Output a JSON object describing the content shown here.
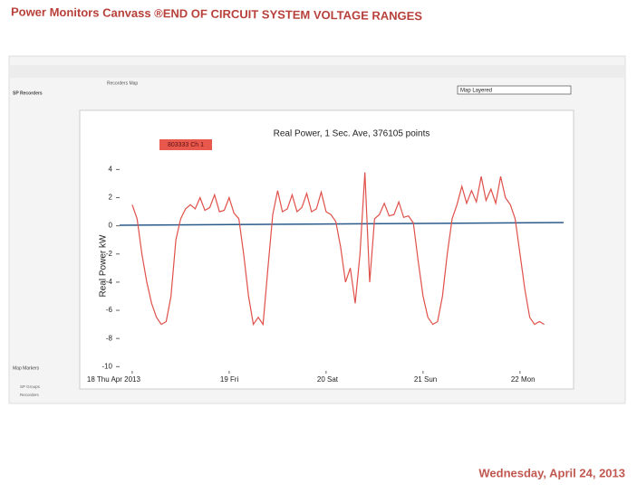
{
  "header": {
    "title": "Power Monitors Canvass ®END OF CIRCUIT SYSTEM VOLTAGE RANGES"
  },
  "app": {
    "map_title": "Recorders Map",
    "map_layers": "Map Layered",
    "sidebar_title": "SP Recorders",
    "markers_title": "Map Markers",
    "markers": [
      "SP Groups",
      "Recorders"
    ],
    "badge": "803333 Ch 1"
  },
  "chart_data": {
    "type": "line",
    "title": "Real Power, 1 Sec. Ave, 376105 points",
    "y_label": "Real Power kW",
    "color": "#e0504a",
    "x": [
      0,
      0.05,
      0.1,
      0.15,
      0.2,
      0.25,
      0.3,
      0.35,
      0.4,
      0.45,
      0.5,
      0.55,
      0.6,
      0.65,
      0.7,
      0.75,
      0.8,
      0.85,
      0.9,
      0.95,
      1,
      1.05,
      1.1,
      1.15,
      1.2,
      1.25,
      1.3,
      1.35,
      1.4,
      1.45,
      1.5,
      1.55,
      1.6,
      1.65,
      1.7,
      1.75,
      1.8,
      1.85,
      1.9,
      1.95,
      2,
      2.05,
      2.1,
      2.15,
      2.2,
      2.25,
      2.3,
      2.35,
      2.4,
      2.45,
      2.5,
      2.55,
      2.6,
      2.65,
      2.7,
      2.75,
      2.8,
      2.85,
      2.9,
      2.95,
      3,
      3.05,
      3.1,
      3.15,
      3.2,
      3.25,
      3.3,
      3.35,
      3.4,
      3.45,
      3.5,
      3.55,
      3.6,
      3.65,
      3.7,
      3.75,
      3.8,
      3.85,
      3.9,
      3.95,
      4,
      4.05,
      4.1,
      4.15,
      4.2,
      4.25
    ],
    "values": [
      1.5,
      0.5,
      -2,
      -4,
      -5.5,
      -6.5,
      -7,
      -6.8,
      -5,
      -1,
      0.5,
      1.2,
      1.5,
      1.2,
      2,
      1.1,
      1.3,
      2.2,
      1,
      1.1,
      2,
      0.9,
      0.5,
      -2,
      -5,
      -7,
      -6.5,
      -7,
      -3,
      0.8,
      2.5,
      1,
      1.2,
      2.2,
      1,
      1.3,
      2.3,
      1,
      1.2,
      2.4,
      1,
      0.8,
      0.3,
      -1.5,
      -4,
      -3,
      -5.5,
      -2,
      3.8,
      -4,
      0.5,
      0.8,
      1.6,
      0.7,
      0.8,
      1.7,
      0.6,
      0.7,
      0.2,
      -2.5,
      -5,
      -6.5,
      -7,
      -6.8,
      -5,
      -2,
      0.5,
      1.5,
      2.8,
      1.6,
      2.5,
      1.7,
      3.5,
      1.8,
      2.6,
      1.6,
      3.5,
      2,
      1.5,
      0.5,
      -2,
      -4.5,
      -6.5,
      -7,
      -6.8,
      -7
    ],
    "xlim": [
      -0.13,
      4.45
    ],
    "xticks": [
      {
        "value": 0,
        "label": "18 Thu Apr 2013"
      },
      {
        "value": 1,
        "label": "19 Fri"
      },
      {
        "value": 2,
        "label": "20 Sat"
      },
      {
        "value": 3,
        "label": "21 Sun"
      },
      {
        "value": 4,
        "label": "22 Mon"
      }
    ],
    "ylim": [
      -10.3,
      4.6
    ],
    "yticks": [
      4,
      2,
      0,
      -2,
      -4,
      -6,
      -8,
      -10
    ]
  },
  "footer": {
    "date": "Wednesday, April 24, 2013"
  }
}
